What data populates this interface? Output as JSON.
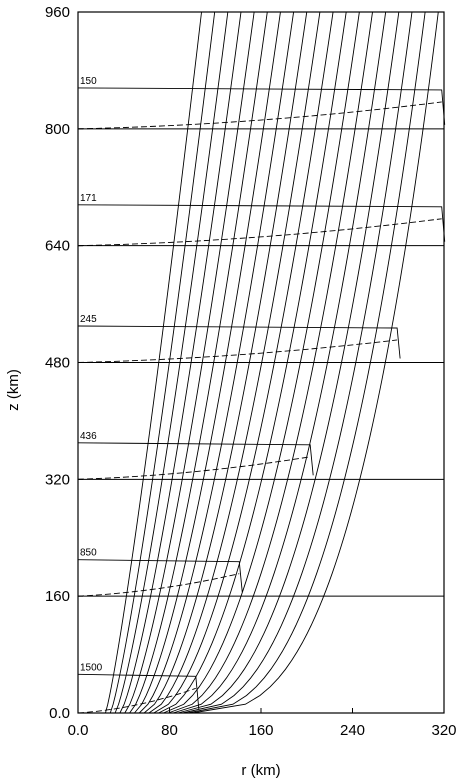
{
  "chart_data": {
    "type": "line",
    "title": "",
    "xlabel": "r (km)",
    "ylabel": "z (km)",
    "xlim": [
      0,
      320
    ],
    "ylim": [
      0,
      960
    ],
    "x_ticks": [
      "0.0",
      "80",
      "160",
      "240",
      "320"
    ],
    "y_ticks": [
      "0.0",
      "160",
      "320",
      "480",
      "640",
      "800",
      "960"
    ],
    "x_tick_values": [
      0,
      80,
      160,
      240,
      320
    ],
    "y_tick_values": [
      0,
      160,
      320,
      480,
      640,
      800,
      960
    ],
    "horizontal_lines_z": [
      160,
      320,
      480,
      640,
      800
    ],
    "field_lines": {
      "count": 19,
      "r_at_base_start": 24,
      "r_at_base_end": 100,
      "r_at_top_start": 108,
      "r_at_top_end": 315
    },
    "profiles": [
      {
        "label": "1500",
        "z_top": 53,
        "z_base": 0,
        "r_inner": 0,
        "r_outer": 103
      },
      {
        "label": "850",
        "z_top": 210,
        "z_base": 160,
        "r_inner": 0,
        "r_outer": 141
      },
      {
        "label": "436",
        "z_top": 370,
        "z_base": 320,
        "r_inner": 0,
        "r_outer": 203
      },
      {
        "label": "245",
        "z_top": 530,
        "z_base": 480,
        "r_inner": 0,
        "r_outer": 279
      },
      {
        "label": "171",
        "z_top": 696,
        "z_base": 640,
        "r_inner": 0,
        "r_outer": 318
      },
      {
        "label": "150",
        "z_top": 856,
        "z_base": 800,
        "r_inner": 0,
        "r_outer": 318
      }
    ]
  }
}
